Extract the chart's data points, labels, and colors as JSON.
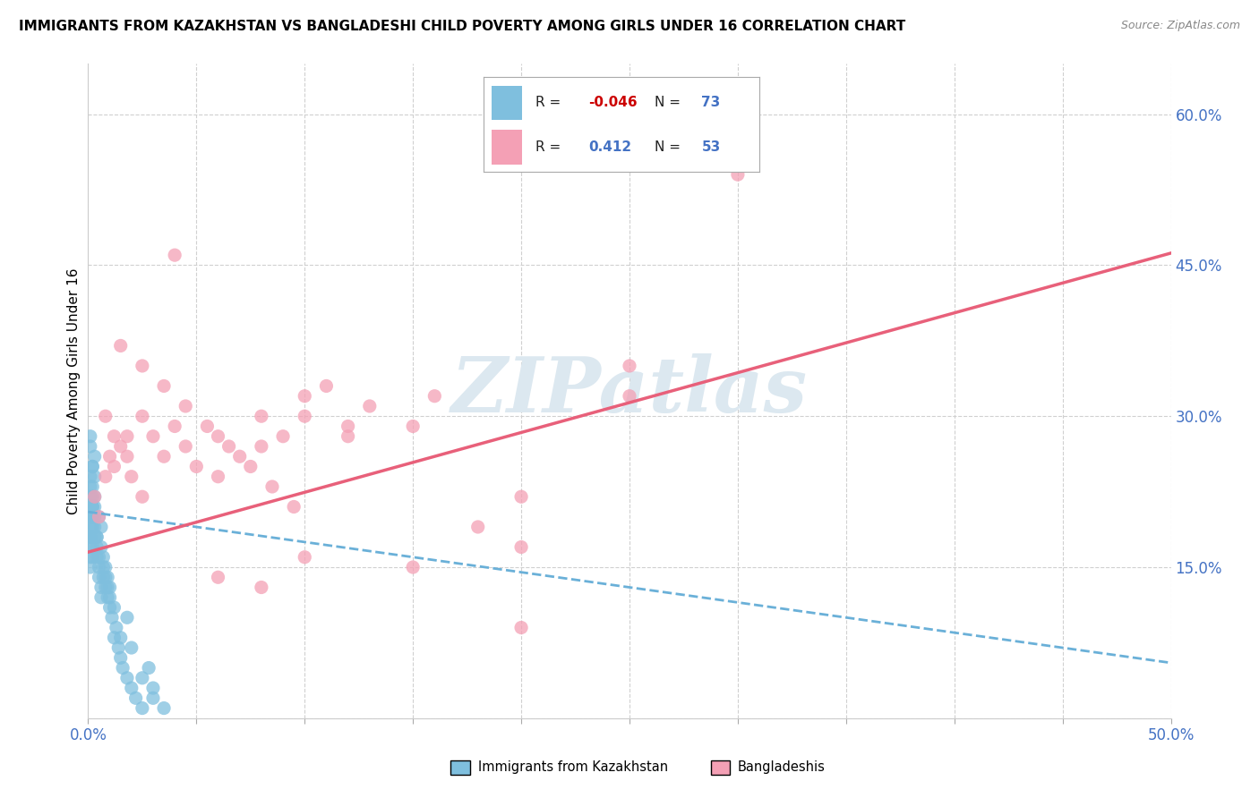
{
  "title": "IMMIGRANTS FROM KAZAKHSTAN VS BANGLADESHI CHILD POVERTY AMONG GIRLS UNDER 16 CORRELATION CHART",
  "source": "Source: ZipAtlas.com",
  "ylabel": "Child Poverty Among Girls Under 16",
  "xlim": [
    0.0,
    0.5
  ],
  "ylim": [
    0.0,
    0.65
  ],
  "x_ticks": [
    0.0,
    0.05,
    0.1,
    0.15,
    0.2,
    0.25,
    0.3,
    0.35,
    0.4,
    0.45,
    0.5
  ],
  "y_ticks": [
    0.0,
    0.15,
    0.3,
    0.45,
    0.6
  ],
  "blue_color": "#7fbfde",
  "pink_color": "#f4a0b5",
  "blue_line_color": "#6ab0d8",
  "pink_line_color": "#e8607a",
  "watermark": "ZIPatlas",
  "watermark_color": "#dce8f0",
  "blue_scatter_x": [
    0.001,
    0.002,
    0.001,
    0.003,
    0.002,
    0.001,
    0.003,
    0.002,
    0.001,
    0.002,
    0.003,
    0.001,
    0.002,
    0.003,
    0.001,
    0.002,
    0.001,
    0.003,
    0.002,
    0.001,
    0.002,
    0.001,
    0.003,
    0.002,
    0.001,
    0.002,
    0.003,
    0.001,
    0.002,
    0.001,
    0.004,
    0.005,
    0.004,
    0.005,
    0.006,
    0.004,
    0.005,
    0.006,
    0.004,
    0.005,
    0.006,
    0.007,
    0.006,
    0.007,
    0.008,
    0.007,
    0.008,
    0.009,
    0.008,
    0.009,
    0.01,
    0.009,
    0.01,
    0.011,
    0.012,
    0.01,
    0.013,
    0.014,
    0.015,
    0.012,
    0.016,
    0.018,
    0.02,
    0.015,
    0.022,
    0.025,
    0.028,
    0.03,
    0.018,
    0.02,
    0.025,
    0.03,
    0.035
  ],
  "blue_scatter_y": [
    0.27,
    0.25,
    0.22,
    0.24,
    0.2,
    0.18,
    0.26,
    0.23,
    0.28,
    0.21,
    0.19,
    0.24,
    0.22,
    0.2,
    0.17,
    0.19,
    0.23,
    0.21,
    0.25,
    0.18,
    0.16,
    0.2,
    0.22,
    0.17,
    0.19,
    0.21,
    0.18,
    0.15,
    0.2,
    0.16,
    0.18,
    0.2,
    0.16,
    0.14,
    0.19,
    0.17,
    0.15,
    0.13,
    0.18,
    0.16,
    0.12,
    0.14,
    0.17,
    0.15,
    0.13,
    0.16,
    0.14,
    0.12,
    0.15,
    0.13,
    0.11,
    0.14,
    0.12,
    0.1,
    0.08,
    0.13,
    0.09,
    0.07,
    0.06,
    0.11,
    0.05,
    0.04,
    0.03,
    0.08,
    0.02,
    0.01,
    0.05,
    0.03,
    0.1,
    0.07,
    0.04,
    0.02,
    0.01
  ],
  "pink_scatter_x": [
    0.003,
    0.005,
    0.008,
    0.01,
    0.012,
    0.015,
    0.018,
    0.02,
    0.025,
    0.008,
    0.012,
    0.018,
    0.025,
    0.03,
    0.035,
    0.04,
    0.045,
    0.05,
    0.06,
    0.07,
    0.08,
    0.09,
    0.1,
    0.12,
    0.015,
    0.025,
    0.035,
    0.045,
    0.055,
    0.065,
    0.075,
    0.085,
    0.095,
    0.11,
    0.13,
    0.15,
    0.18,
    0.2,
    0.25,
    0.06,
    0.08,
    0.1,
    0.12,
    0.16,
    0.2,
    0.25,
    0.3,
    0.04,
    0.06,
    0.08,
    0.1,
    0.15,
    0.2
  ],
  "pink_scatter_y": [
    0.22,
    0.2,
    0.24,
    0.26,
    0.25,
    0.27,
    0.28,
    0.24,
    0.22,
    0.3,
    0.28,
    0.26,
    0.3,
    0.28,
    0.26,
    0.29,
    0.27,
    0.25,
    0.28,
    0.26,
    0.3,
    0.28,
    0.32,
    0.29,
    0.37,
    0.35,
    0.33,
    0.31,
    0.29,
    0.27,
    0.25,
    0.23,
    0.21,
    0.33,
    0.31,
    0.29,
    0.19,
    0.17,
    0.32,
    0.24,
    0.27,
    0.3,
    0.28,
    0.32,
    0.22,
    0.35,
    0.54,
    0.46,
    0.14,
    0.13,
    0.16,
    0.15,
    0.09
  ],
  "blue_line_x": [
    0.0,
    0.5
  ],
  "blue_line_y": [
    0.205,
    0.055
  ],
  "pink_line_x": [
    0.0,
    0.5
  ],
  "pink_line_y": [
    0.165,
    0.462
  ]
}
